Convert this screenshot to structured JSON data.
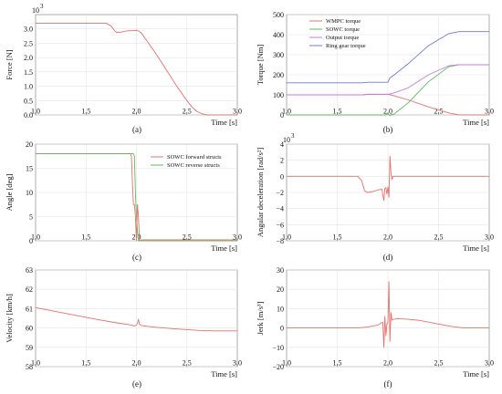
{
  "chart_data": [
    {
      "type": "line",
      "caption": "(a)",
      "xlabel": "Time [s]",
      "ylabel": "Force [N]",
      "y_multiplier": "10",
      "y_multiplier_exp": "3",
      "xlim": [
        1.0,
        3.0
      ],
      "ylim": [
        0.0,
        3.5
      ],
      "xticks": [
        "1.0",
        "1.5",
        "2.0",
        "2.5",
        "3.0"
      ],
      "yticks": [
        "0.0",
        "0.5",
        "1.0",
        "1.5",
        "2.0",
        "2.5",
        "3.0"
      ],
      "ytick_values": [
        0,
        0.5,
        1.0,
        1.5,
        2.0,
        2.5,
        3.0
      ],
      "grid": true,
      "legend": [],
      "series": [
        {
          "color": "#e8706d",
          "x": [
            1.0,
            1.5,
            1.7,
            1.75,
            1.78,
            1.8,
            1.85,
            1.9,
            2.0,
            2.02,
            2.05,
            2.1,
            2.2,
            2.3,
            2.4,
            2.5,
            2.55,
            2.6,
            2.65,
            2.7,
            3.0
          ],
          "y": [
            3.2,
            3.2,
            3.2,
            3.1,
            2.95,
            2.88,
            2.89,
            2.93,
            2.95,
            2.93,
            2.85,
            2.6,
            2.1,
            1.55,
            1.0,
            0.5,
            0.28,
            0.12,
            0.04,
            0.0,
            0.0
          ]
        }
      ]
    },
    {
      "type": "line",
      "caption": "(b)",
      "xlabel": "Time [s]",
      "ylabel": "Torque [Nm]",
      "xlim": [
        1.0,
        3.0
      ],
      "ylim": [
        0,
        500
      ],
      "xticks": [
        "1.0",
        "1.5",
        "2.0",
        "2.5",
        "3.0"
      ],
      "yticks": [
        "0",
        "100",
        "200",
        "300",
        "400",
        "500"
      ],
      "ytick_values": [
        0,
        100,
        200,
        300,
        400,
        500
      ],
      "grid": true,
      "legend": [
        "WMPC torque",
        "SOWC torque",
        "Output torque",
        "Ring gear torque"
      ],
      "legend_placement": "top-left",
      "series": [
        {
          "name": "WMPC torque",
          "color": "#e8706d",
          "x": [
            1.0,
            1.7,
            1.75,
            1.8,
            2.0,
            2.05,
            2.2,
            2.4,
            2.6,
            2.7,
            3.0
          ],
          "y": [
            100,
            100,
            100,
            103,
            103,
            97,
            75,
            40,
            10,
            0,
            0
          ]
        },
        {
          "name": "SOWC torque",
          "color": "#5cb85c",
          "x": [
            1.0,
            1.98,
            2.0,
            2.02,
            2.04,
            2.05,
            2.2,
            2.4,
            2.6,
            2.7,
            3.0
          ],
          "y": [
            0,
            0,
            8,
            -4,
            5,
            0,
            60,
            165,
            240,
            250,
            250
          ]
        },
        {
          "name": "Output torque",
          "color": "#c77cd9",
          "x": [
            1.0,
            1.7,
            1.75,
            1.8,
            2.0,
            2.05,
            2.2,
            2.4,
            2.6,
            2.7,
            3.0
          ],
          "y": [
            100,
            100,
            100,
            102,
            102,
            108,
            135,
            200,
            245,
            250,
            250
          ]
        },
        {
          "name": "Ring gear torque",
          "color": "#6b7bd6",
          "x": [
            1.0,
            1.7,
            1.75,
            1.8,
            2.0,
            2.02,
            2.05,
            2.2,
            2.4,
            2.6,
            2.7,
            3.0
          ],
          "y": [
            160,
            160,
            160,
            163,
            163,
            185,
            195,
            255,
            345,
            405,
            415,
            415
          ]
        }
      ]
    },
    {
      "type": "line",
      "caption": "(c)",
      "xlabel": "Time [s]",
      "ylabel": "Angle [deg]",
      "xlim": [
        1.0,
        3.0
      ],
      "ylim": [
        0,
        20
      ],
      "xticks": [
        "1.0",
        "1.5",
        "2.0",
        "2.5",
        "3.0"
      ],
      "yticks": [
        "0",
        "5",
        "10",
        "15",
        "20"
      ],
      "ytick_values": [
        0,
        5,
        10,
        15,
        20
      ],
      "grid": true,
      "legend": [
        "SOWC forward structs",
        "SOWC reverse structs"
      ],
      "legend_placement": "top-right",
      "series": [
        {
          "name": "SOWC forward structs",
          "color": "#e8706d",
          "x": [
            1.0,
            1.94,
            1.95,
            1.96,
            1.97,
            1.98,
            1.99,
            2.0,
            2.01,
            2.02,
            2.03,
            2.05,
            3.0
          ],
          "y": [
            18,
            18,
            17.5,
            12,
            7.5,
            7.5,
            5,
            0,
            7.5,
            5,
            0,
            0.2,
            0.2
          ]
        },
        {
          "name": "SOWC reverse structs",
          "color": "#5cb85c",
          "x": [
            1.0,
            1.97,
            1.98,
            1.99,
            2.0,
            2.01,
            2.02,
            3.0
          ],
          "y": [
            18,
            18,
            17.5,
            10,
            5,
            2,
            0,
            0
          ]
        }
      ]
    },
    {
      "type": "line",
      "caption": "(d)",
      "xlabel": "Time [s]",
      "ylabel": "Angular deceleration [rad/s²]",
      "y_multiplier": "10",
      "y_multiplier_exp": "3",
      "xlim": [
        1.0,
        3.0
      ],
      "ylim": [
        -8,
        4
      ],
      "xticks": [
        "1.0",
        "1.5",
        "2.0",
        "2.5",
        "3.0"
      ],
      "yticks": [
        "−8",
        "−6",
        "−4",
        "−2",
        "0",
        "2",
        "4"
      ],
      "ytick_values": [
        -8,
        -6,
        -4,
        -2,
        0,
        2,
        4
      ],
      "grid": true,
      "legend": [],
      "series": [
        {
          "color": "#e8706d",
          "x": [
            1.0,
            1.7,
            1.74,
            1.77,
            1.8,
            1.85,
            1.9,
            1.94,
            1.96,
            1.97,
            1.98,
            1.99,
            2.0,
            2.01,
            2.02,
            2.03,
            2.04,
            2.05,
            2.1,
            3.0
          ],
          "y": [
            0,
            0,
            -0.5,
            -1.8,
            -2.0,
            -1.9,
            -1.7,
            -1.6,
            -3.0,
            -1.5,
            -1.4,
            -2.2,
            -1.3,
            -2.6,
            2.5,
            0.5,
            -0.4,
            0,
            0,
            0
          ]
        }
      ]
    },
    {
      "type": "line",
      "caption": "(e)",
      "xlabel": "Time [s]",
      "ylabel": "Velocity [km/h]",
      "xlim": [
        1.0,
        3.0
      ],
      "ylim": [
        58,
        63
      ],
      "xticks": [
        "1.0",
        "1.5",
        "2.0",
        "2.5",
        "3.0"
      ],
      "yticks": [
        "58",
        "59",
        "60",
        "61",
        "62",
        "63"
      ],
      "ytick_values": [
        58,
        59,
        60,
        61,
        62,
        63
      ],
      "grid": true,
      "legend": [],
      "series": [
        {
          "color": "#e8706d",
          "x": [
            1.0,
            1.2,
            1.4,
            1.6,
            1.8,
            1.95,
            1.98,
            2.0,
            2.01,
            2.02,
            2.03,
            2.05,
            2.2,
            2.4,
            2.6,
            2.7,
            2.8,
            3.0
          ],
          "y": [
            61.05,
            60.85,
            60.65,
            60.45,
            60.27,
            60.15,
            60.1,
            60.15,
            60.25,
            60.45,
            60.2,
            60.12,
            60.03,
            59.95,
            59.88,
            59.86,
            59.85,
            59.85
          ]
        }
      ]
    },
    {
      "type": "line",
      "caption": "(f)",
      "xlabel": "Time [s]",
      "ylabel": "Jerk [m/s³]",
      "xlim": [
        1.0,
        3.0
      ],
      "ylim": [
        -20,
        30
      ],
      "xticks": [
        "1.0",
        "1.5",
        "2.0",
        "2.5",
        "3.0"
      ],
      "yticks": [
        "−20",
        "−10",
        "0",
        "10",
        "20",
        "30"
      ],
      "ytick_values": [
        -20,
        -10,
        0,
        10,
        20,
        30
      ],
      "grid": true,
      "legend": [],
      "series": [
        {
          "color": "#e8706d",
          "x": [
            1.0,
            1.7,
            1.8,
            1.9,
            1.95,
            1.96,
            1.97,
            1.98,
            1.99,
            2.0,
            2.01,
            2.02,
            2.03,
            2.04,
            2.05,
            2.1,
            2.2,
            2.3,
            2.4,
            2.5,
            2.6,
            2.7,
            2.75,
            3.0
          ],
          "y": [
            0,
            0,
            0.5,
            1.5,
            3,
            -10,
            6,
            -4,
            2,
            3,
            24,
            -7,
            8,
            4,
            4.5,
            4.8,
            4.5,
            4,
            3,
            2,
            1,
            0.3,
            0,
            0
          ]
        }
      ]
    }
  ]
}
